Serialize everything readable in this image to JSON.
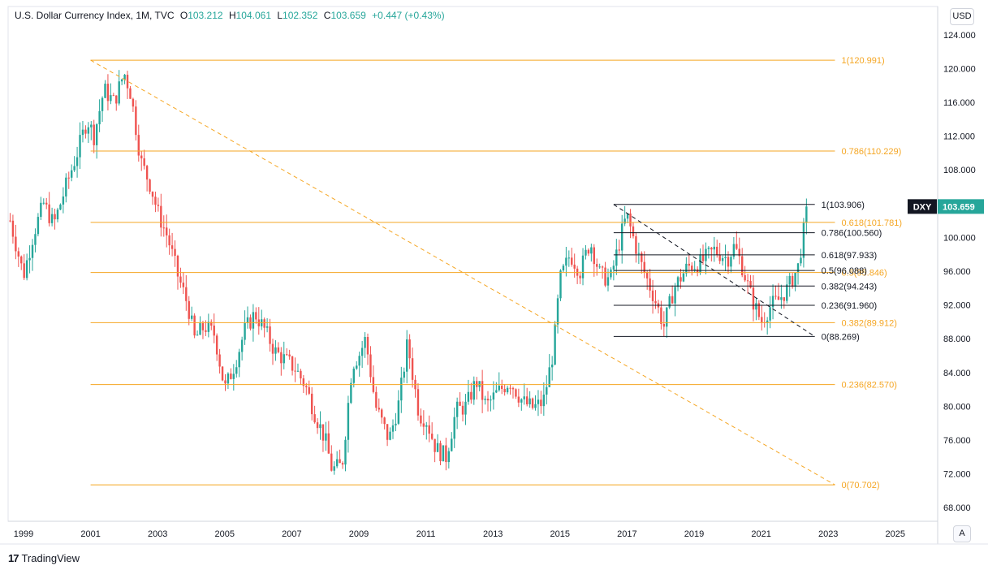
{
  "header": {
    "title": "U.S. Dollar Currency Index, 1M, TVC",
    "o_label": "O",
    "o_value": "103.212",
    "h_label": "H",
    "h_value": "104.061",
    "l_label": "L",
    "l_value": "102.352",
    "c_label": "C",
    "c_value": "103.659",
    "change": "+0.447 (+0.43%)"
  },
  "currency_button": "USD",
  "auto_scale_button": "A",
  "brand": {
    "logo": "17",
    "name": "TradingView"
  },
  "colors": {
    "up": "#26a69a",
    "down": "#ef5350",
    "fib_major": "#f5a623",
    "fib_minor": "#131722",
    "price_tag_bg": "#26a69a",
    "label_bg": "#131722"
  },
  "chart_data": {
    "type": "candlestick",
    "x_ticks": [
      "1999",
      "2001",
      "2003",
      "2005",
      "2007",
      "2009",
      "2011",
      "2013",
      "2015",
      "2017",
      "2019",
      "2021",
      "2023",
      "2025"
    ],
    "y_ticks": [
      "68.000",
      "72.000",
      "76.000",
      "80.000",
      "84.000",
      "88.000",
      "92.000",
      "96.000",
      "100.000",
      "104.000",
      "108.000",
      "112.000",
      "116.000",
      "120.000",
      "124.000"
    ],
    "ylim": [
      66.0,
      125.5
    ],
    "xlim": [
      1998.5,
      2027.0
    ],
    "last_price": {
      "symbol": "DXY",
      "value": "103.659"
    },
    "close_series_anchors": [
      [
        1998.6,
        102.0
      ],
      [
        1999.0,
        95.5
      ],
      [
        1999.3,
        100.5
      ],
      [
        1999.6,
        104.0
      ],
      [
        1999.9,
        101.5
      ],
      [
        2000.3,
        106.5
      ],
      [
        2000.6,
        110.0
      ],
      [
        2000.9,
        114.0
      ],
      [
        2001.1,
        112.0
      ],
      [
        2001.4,
        117.5
      ],
      [
        2001.7,
        116.0
      ],
      [
        2002.0,
        119.5
      ],
      [
        2002.2,
        117.0
      ],
      [
        2002.5,
        109.0
      ],
      [
        2002.8,
        106.0
      ],
      [
        2003.0,
        103.0
      ],
      [
        2003.3,
        100.0
      ],
      [
        2003.6,
        95.5
      ],
      [
        2003.9,
        92.0
      ],
      [
        2004.1,
        88.0
      ],
      [
        2004.4,
        89.5
      ],
      [
        2004.7,
        88.5
      ],
      [
        2005.0,
        82.0
      ],
      [
        2005.3,
        85.0
      ],
      [
        2005.6,
        89.0
      ],
      [
        2005.9,
        91.0
      ],
      [
        2006.2,
        89.0
      ],
      [
        2006.5,
        86.5
      ],
      [
        2006.8,
        85.5
      ],
      [
        2007.1,
        84.5
      ],
      [
        2007.4,
        82.5
      ],
      [
        2007.7,
        79.0
      ],
      [
        2008.0,
        76.0
      ],
      [
        2008.2,
        72.5
      ],
      [
        2008.5,
        73.0
      ],
      [
        2008.8,
        85.0
      ],
      [
        2009.0,
        86.0
      ],
      [
        2009.2,
        88.0
      ],
      [
        2009.5,
        80.0
      ],
      [
        2009.9,
        76.0
      ],
      [
        2010.2,
        80.5
      ],
      [
        2010.45,
        87.5
      ],
      [
        2010.8,
        79.0
      ],
      [
        2011.0,
        78.5
      ],
      [
        2011.3,
        75.0
      ],
      [
        2011.6,
        74.0
      ],
      [
        2011.9,
        79.5
      ],
      [
        2012.2,
        80.0
      ],
      [
        2012.5,
        83.0
      ],
      [
        2012.8,
        80.0
      ],
      [
        2013.1,
        81.5
      ],
      [
        2013.5,
        83.0
      ],
      [
        2013.9,
        80.5
      ],
      [
        2014.2,
        79.8
      ],
      [
        2014.5,
        80.5
      ],
      [
        2014.8,
        86.5
      ],
      [
        2015.0,
        95.0
      ],
      [
        2015.3,
        98.0
      ],
      [
        2015.6,
        96.0
      ],
      [
        2015.9,
        99.5
      ],
      [
        2016.2,
        95.5
      ],
      [
        2016.5,
        95.0
      ],
      [
        2016.9,
        101.5
      ],
      [
        2017.0,
        102.5
      ],
      [
        2017.4,
        97.0
      ],
      [
        2017.8,
        93.0
      ],
      [
        2018.1,
        89.5
      ],
      [
        2018.4,
        94.0
      ],
      [
        2018.8,
        96.5
      ],
      [
        2019.2,
        97.0
      ],
      [
        2019.6,
        98.5
      ],
      [
        2020.0,
        97.5
      ],
      [
        2020.2,
        99.0
      ],
      [
        2020.4,
        97.0
      ],
      [
        2020.7,
        93.0
      ],
      [
        2021.0,
        90.0
      ],
      [
        2021.3,
        92.0
      ],
      [
        2021.5,
        92.5
      ],
      [
        2021.8,
        94.0
      ],
      [
        2022.1,
        96.5
      ],
      [
        2022.3,
        101.5
      ],
      [
        2022.38,
        103.659
      ]
    ],
    "fib_major": {
      "levels": [
        {
          "label": "1(120.991)",
          "value": 120.991
        },
        {
          "label": "0.786(110.229)",
          "value": 110.229
        },
        {
          "label": "0.618(101.781)",
          "value": 101.781
        },
        {
          "label": "0.5(95.846)",
          "value": 95.846
        },
        {
          "label": "0.382(89.912)",
          "value": 89.912
        },
        {
          "label": "0.236(82.570)",
          "value": 82.57
        },
        {
          "label": "0(70.702)",
          "value": 70.702
        }
      ],
      "x_start": 2001.0,
      "x_end": 2023.2,
      "trend_from": [
        2001.0,
        120.991
      ],
      "trend_to": [
        2023.2,
        70.702
      ]
    },
    "fib_minor": {
      "levels": [
        {
          "label": "1(103.906)",
          "value": 103.906
        },
        {
          "label": "0.786(100.560)",
          "value": 100.56
        },
        {
          "label": "0.618(97.933)",
          "value": 97.933
        },
        {
          "label": "0.5(96.088)",
          "value": 96.088
        },
        {
          "label": "0.382(94.243)",
          "value": 94.243
        },
        {
          "label": "0.236(91.960)",
          "value": 91.96
        },
        {
          "label": "0(88.269)",
          "value": 88.269
        }
      ],
      "x_start": 2016.6,
      "x_end": 2022.6,
      "trend_from": [
        2016.6,
        103.906
      ],
      "trend_to": [
        2022.6,
        88.269
      ]
    }
  }
}
